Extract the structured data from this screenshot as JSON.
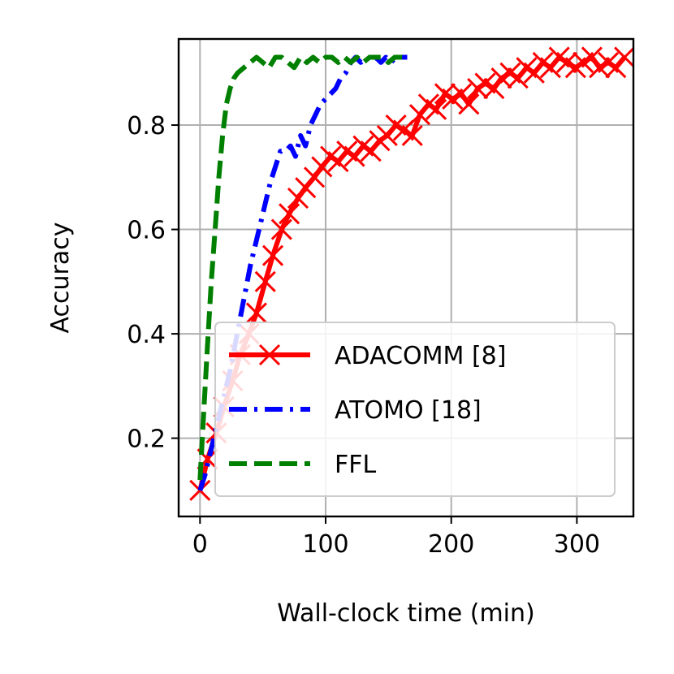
{
  "chart_data": {
    "type": "line",
    "xlabel": "Wall-clock time (min)",
    "ylabel": "Accuracy",
    "xlim": [
      -17,
      345
    ],
    "ylim": [
      0.05,
      0.965
    ],
    "xticks": [
      0,
      100,
      200,
      300
    ],
    "xtick_labels": [
      "0",
      "100",
      "200",
      "300"
    ],
    "yticks": [
      0.2,
      0.4,
      0.6,
      0.8
    ],
    "ytick_labels": [
      "0.2",
      "0.4",
      "0.6",
      "0.8"
    ],
    "grid": true,
    "legend_position": "lower-right",
    "series": [
      {
        "name": "ADACOMM [8]",
        "color": "#ff0000",
        "line_style": "solid",
        "marker": "x",
        "x": [
          0,
          6,
          13,
          19,
          26,
          32,
          39,
          45,
          52,
          58,
          65,
          71,
          78,
          84,
          91,
          97,
          104,
          110,
          117,
          123,
          130,
          136,
          143,
          149,
          156,
          162,
          169,
          175,
          182,
          188,
          195,
          201,
          208,
          214,
          221,
          227,
          234,
          240,
          247,
          253,
          260,
          266,
          273,
          279,
          286,
          292,
          299,
          305,
          312,
          318,
          325,
          331,
          338
        ],
        "y": [
          0.1,
          0.16,
          0.21,
          0.26,
          0.31,
          0.36,
          0.4,
          0.44,
          0.5,
          0.55,
          0.6,
          0.63,
          0.66,
          0.68,
          0.7,
          0.72,
          0.74,
          0.73,
          0.75,
          0.74,
          0.76,
          0.75,
          0.77,
          0.78,
          0.8,
          0.79,
          0.78,
          0.82,
          0.84,
          0.83,
          0.86,
          0.85,
          0.86,
          0.84,
          0.87,
          0.88,
          0.87,
          0.89,
          0.9,
          0.89,
          0.91,
          0.9,
          0.92,
          0.91,
          0.93,
          0.92,
          0.91,
          0.92,
          0.93,
          0.91,
          0.92,
          0.91,
          0.93
        ]
      },
      {
        "name": "ATOMO [18]",
        "color": "#0000ff",
        "line_style": "dashdot",
        "marker": "",
        "x": [
          0,
          4,
          8,
          12,
          16,
          20,
          24,
          28,
          32,
          36,
          40,
          44,
          48,
          52,
          56,
          60,
          64,
          68,
          72,
          76,
          80,
          84,
          88,
          92,
          96,
          100,
          104,
          108,
          112,
          116,
          120,
          124,
          128,
          132,
          136,
          140,
          144,
          148,
          152,
          156,
          160,
          165
        ],
        "y": [
          0.1,
          0.13,
          0.17,
          0.21,
          0.25,
          0.29,
          0.33,
          0.38,
          0.43,
          0.48,
          0.53,
          0.57,
          0.61,
          0.65,
          0.69,
          0.72,
          0.75,
          0.75,
          0.76,
          0.74,
          0.78,
          0.76,
          0.8,
          0.82,
          0.84,
          0.85,
          0.86,
          0.87,
          0.89,
          0.9,
          0.92,
          0.93,
          0.92,
          0.93,
          0.92,
          0.93,
          0.92,
          0.93,
          0.92,
          0.93,
          0.93,
          0.93
        ]
      },
      {
        "name": "FFL",
        "color": "#008000",
        "line_style": "dashed",
        "marker": "",
        "x": [
          0,
          3,
          6,
          9,
          12,
          15,
          18,
          21,
          24,
          27,
          30,
          35,
          40,
          45,
          50,
          55,
          60,
          65,
          70,
          75,
          80,
          85,
          90,
          95,
          100,
          105,
          110,
          115,
          120,
          125,
          130,
          135,
          140,
          145,
          150,
          155,
          160,
          165
        ],
        "y": [
          0.12,
          0.25,
          0.38,
          0.5,
          0.6,
          0.7,
          0.78,
          0.84,
          0.87,
          0.89,
          0.9,
          0.91,
          0.92,
          0.93,
          0.92,
          0.91,
          0.93,
          0.93,
          0.92,
          0.91,
          0.93,
          0.92,
          0.93,
          0.92,
          0.93,
          0.93,
          0.92,
          0.93,
          0.92,
          0.93,
          0.92,
          0.93,
          0.93,
          0.93,
          0.92,
          0.93,
          0.93,
          0.93
        ]
      }
    ]
  }
}
